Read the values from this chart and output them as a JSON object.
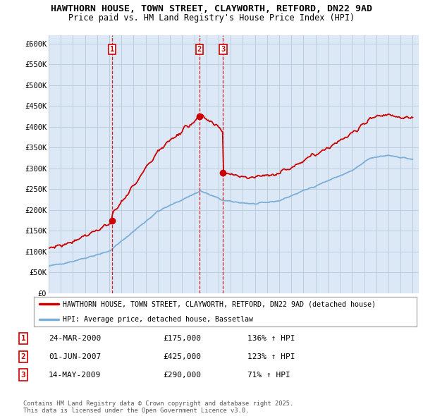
{
  "title": "HAWTHORN HOUSE, TOWN STREET, CLAYWORTH, RETFORD, DN22 9AD",
  "subtitle": "Price paid vs. HM Land Registry's House Price Index (HPI)",
  "background_color": "#ffffff",
  "plot_bg_color": "#dce8f5",
  "grid_color": "#b8cfe0",
  "red_color": "#cc0000",
  "blue_color": "#7aaed6",
  "sale_color": "#cc0000",
  "ylim": [
    0,
    620000
  ],
  "yticks": [
    0,
    50000,
    100000,
    150000,
    200000,
    250000,
    300000,
    350000,
    400000,
    450000,
    500000,
    550000,
    600000
  ],
  "ytick_labels": [
    "£0",
    "£50K",
    "£100K",
    "£150K",
    "£200K",
    "£250K",
    "£300K",
    "£350K",
    "£400K",
    "£450K",
    "£500K",
    "£550K",
    "£600K"
  ],
  "xlim_start": 1995.0,
  "xlim_end": 2025.5,
  "xticks": [
    1995,
    1996,
    1997,
    1998,
    1999,
    2000,
    2001,
    2002,
    2003,
    2004,
    2005,
    2006,
    2007,
    2008,
    2009,
    2010,
    2011,
    2012,
    2013,
    2014,
    2015,
    2016,
    2017,
    2018,
    2019,
    2020,
    2021,
    2022,
    2023,
    2024,
    2025
  ],
  "sales": [
    {
      "label": "1",
      "date": 2000.23,
      "price": 175000,
      "hpi_pct": "136% ↑ HPI",
      "date_str": "24-MAR-2000",
      "price_str": "£175,000"
    },
    {
      "label": "2",
      "date": 2007.42,
      "price": 425000,
      "hpi_pct": "123% ↑ HPI",
      "date_str": "01-JUN-2007",
      "price_str": "£425,000"
    },
    {
      "label": "3",
      "date": 2009.37,
      "price": 290000,
      "hpi_pct": "71% ↑ HPI",
      "date_str": "14-MAY-2009",
      "price_str": "£290,000"
    }
  ],
  "legend_line1": "HAWTHORN HOUSE, TOWN STREET, CLAYWORTH, RETFORD, DN22 9AD (detached house)",
  "legend_line2": "HPI: Average price, detached house, Bassetlaw",
  "footnote": "Contains HM Land Registry data © Crown copyright and database right 2025.\nThis data is licensed under the Open Government Licence v3.0."
}
